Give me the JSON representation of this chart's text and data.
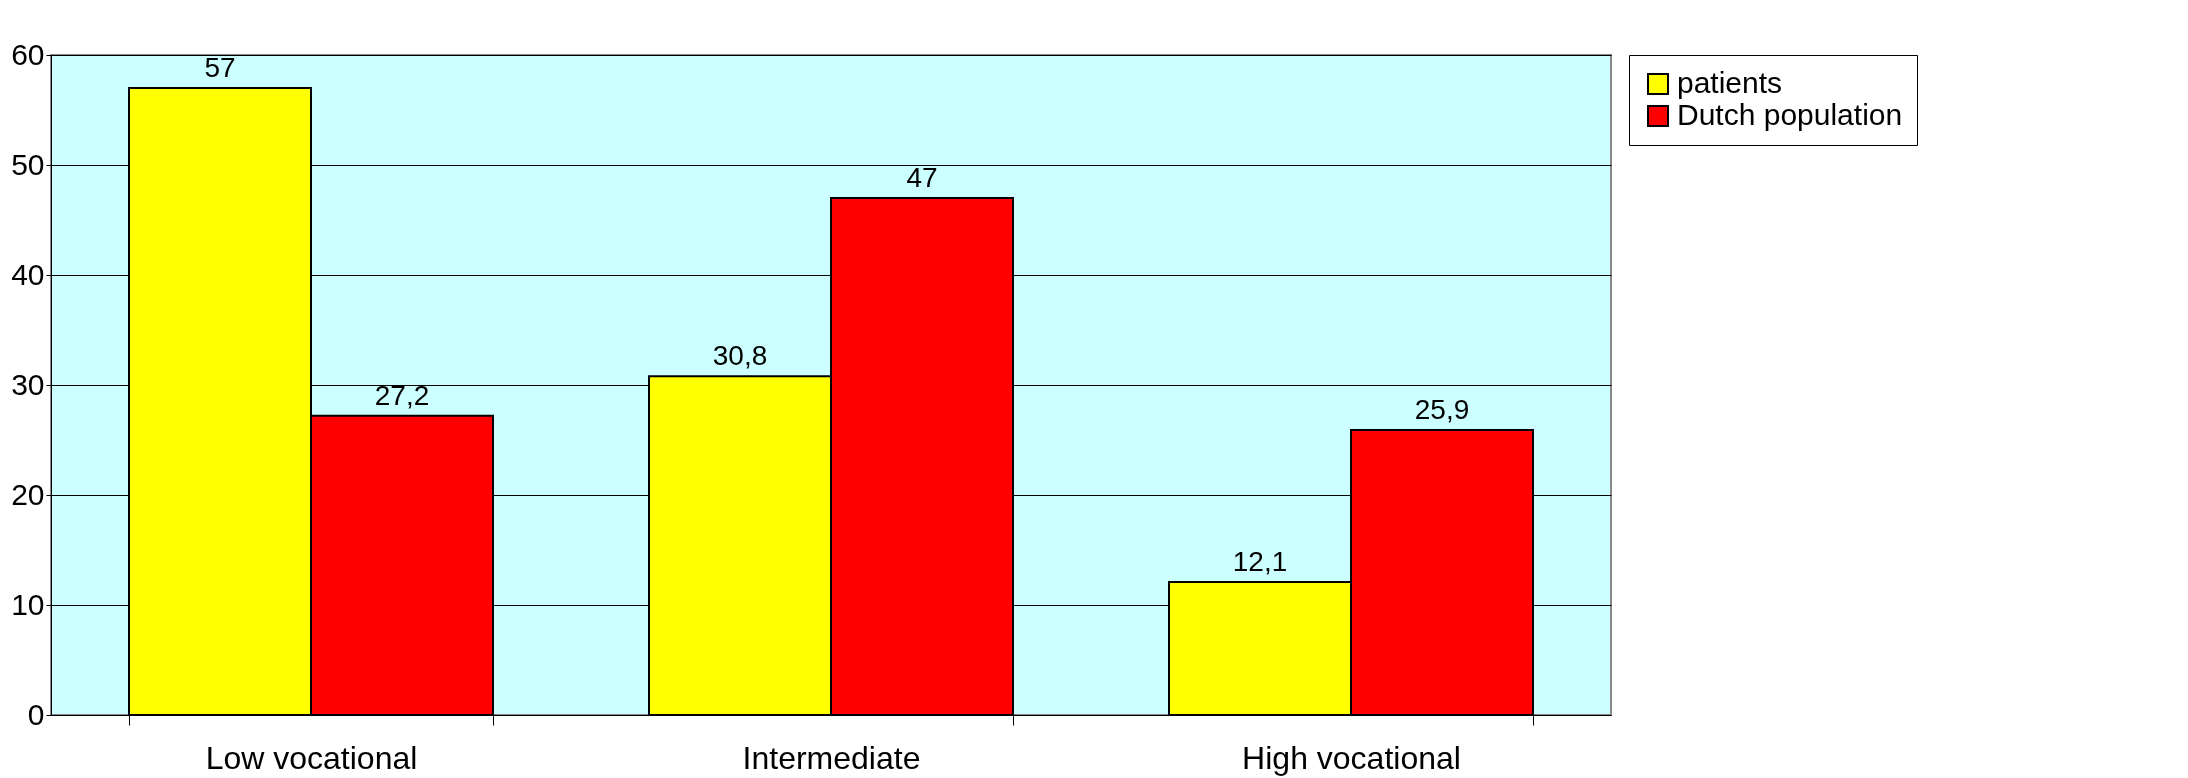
{
  "chart_data": {
    "type": "bar",
    "categories": [
      "Low vocational",
      "Intermediate",
      "High vocational"
    ],
    "series": [
      {
        "name": "patients",
        "color": "#ffff00",
        "values": [
          57,
          30.8,
          12.1
        ],
        "value_labels": [
          "57",
          "30,8",
          "12,1"
        ]
      },
      {
        "name": "Dutch population",
        "color": "#ff0000",
        "values": [
          27.2,
          47,
          25.9
        ],
        "value_labels": [
          "27,2",
          "47",
          "25,9"
        ]
      }
    ],
    "ylim": [
      0,
      60
    ],
    "yticks": [
      0,
      10,
      20,
      30,
      40,
      50,
      60
    ],
    "grid": "y",
    "legend": "right"
  }
}
